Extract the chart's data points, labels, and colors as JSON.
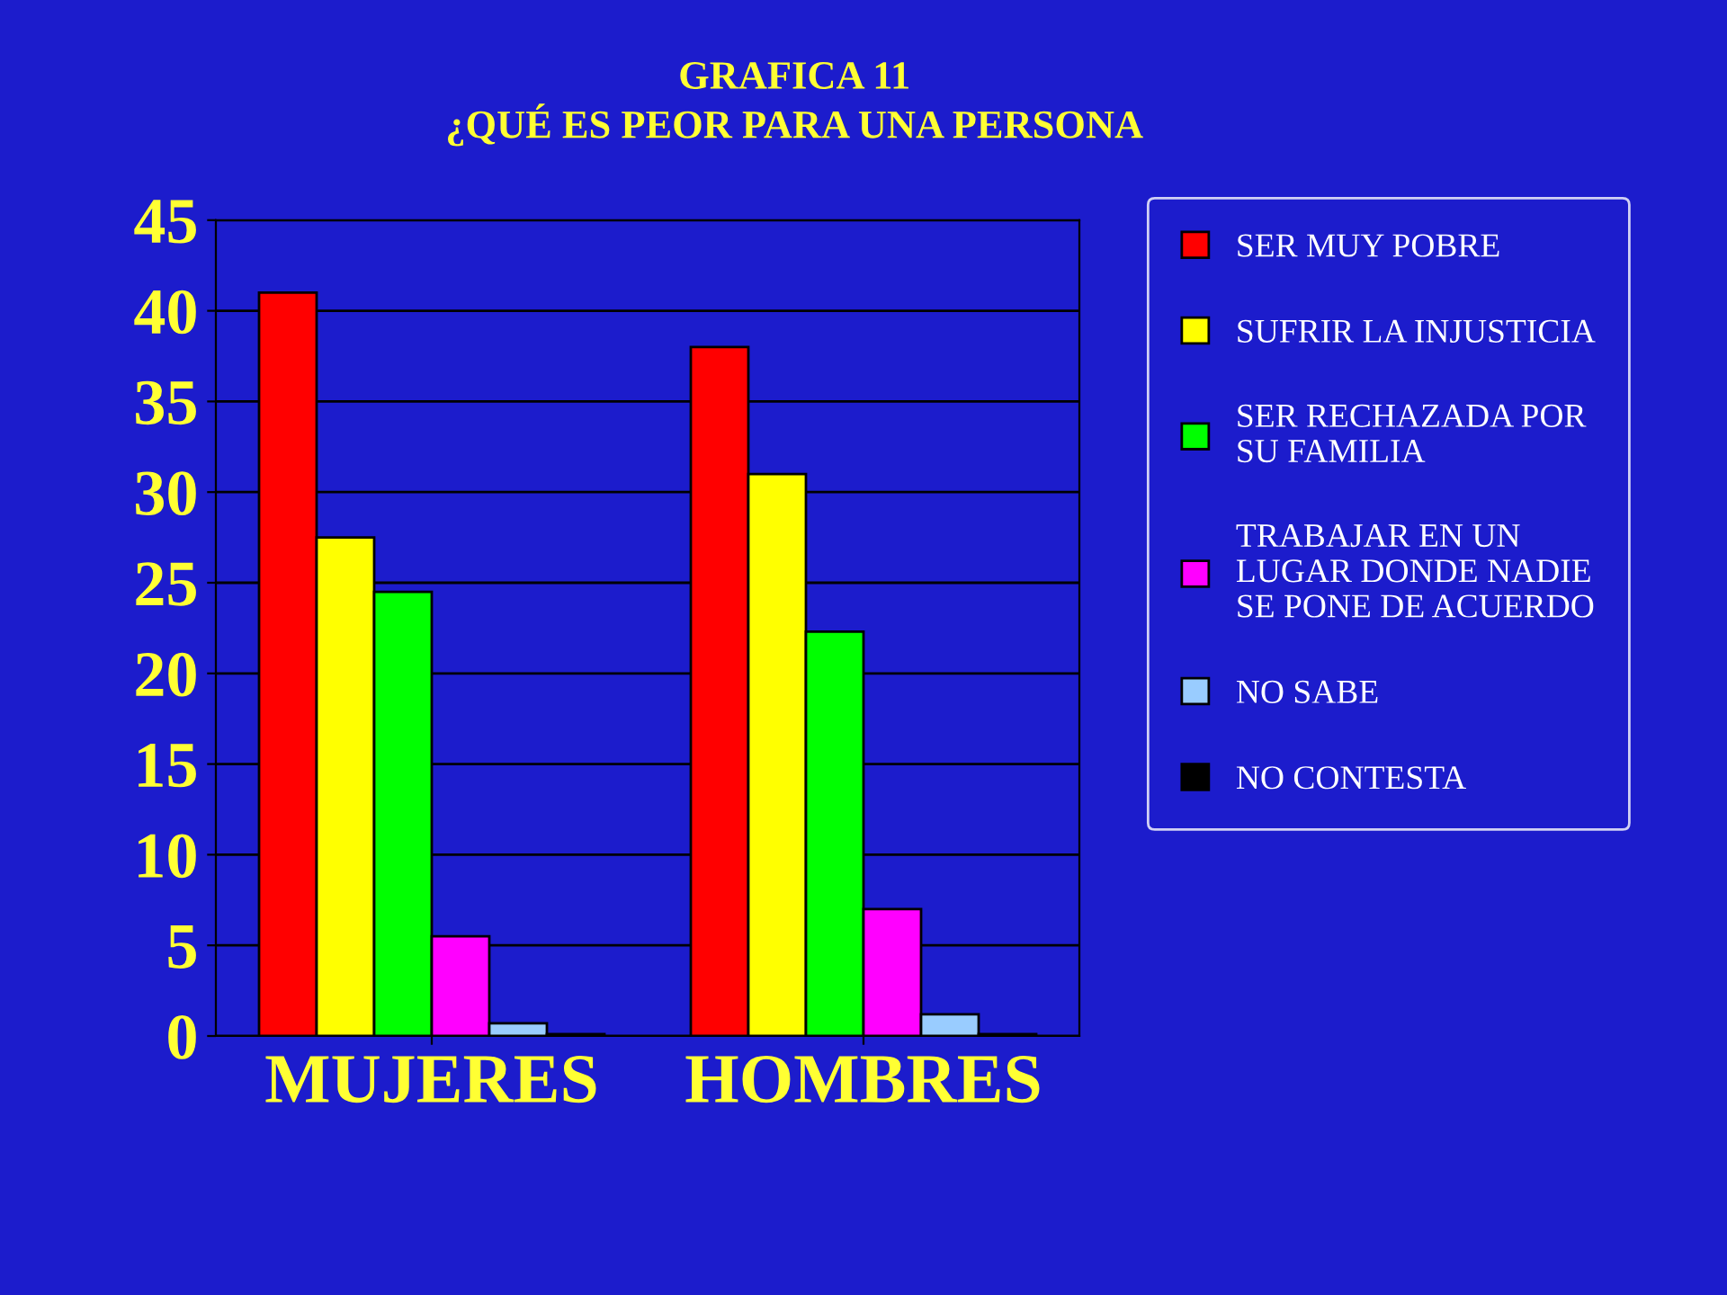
{
  "chart_data": {
    "type": "bar",
    "title": "GRAFICA 11\n¿QUÉ ES PEOR PARA UNA PERSONA",
    "categories": [
      "MUJERES",
      "HOMBRES"
    ],
    "series": [
      {
        "name": "SER MUY POBRE",
        "color": "#ff0000",
        "values": [
          41,
          38
        ]
      },
      {
        "name": "SUFRIR LA INJUSTICIA",
        "color": "#ffff00",
        "values": [
          27.5,
          31
        ]
      },
      {
        "name": "SER RECHAZADA POR\nSU FAMILIA",
        "color": "#00ff00",
        "values": [
          24.5,
          22.3
        ]
      },
      {
        "name": "TRABAJAR EN UN\nLUGAR DONDE NADIE\nSE PONE DE ACUERDO",
        "color": "#ff00ff",
        "values": [
          5.5,
          7
        ]
      },
      {
        "name": "NO SABE",
        "color": "#99ccff",
        "values": [
          0.7,
          1.2
        ]
      },
      {
        "name": "NO CONTESTA",
        "color": "#000000",
        "values": [
          0.1,
          0.1
        ]
      }
    ],
    "ylim": [
      0,
      45
    ],
    "yticks": [
      0,
      5,
      10,
      15,
      20,
      25,
      30,
      35,
      40,
      45
    ],
    "grid": "y",
    "legend": "right"
  }
}
